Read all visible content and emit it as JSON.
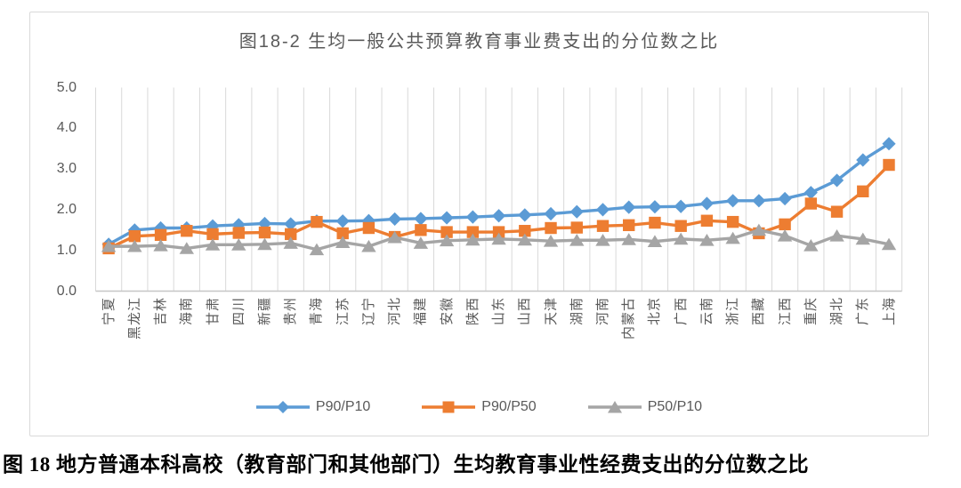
{
  "figure": {
    "chart_title": "图18-2 生均一般公共预算教育事业费支出的分位数之比",
    "caption": "图 18 地方普通本科高校（教育部门和其他部门）生均教育事业性经费支出的分位数之比"
  },
  "colors": {
    "series_blue": "#5B9BD5",
    "series_orange": "#ED7D31",
    "series_gray": "#A5A5A5",
    "gridline": "#D9D9D9",
    "axis_line": "#C6C6C6",
    "axis_text": "#595959",
    "chart_border": "#D9D9D9",
    "caption_text": "#000000"
  },
  "chart_data": {
    "type": "line",
    "title": "图18-2 生均一般公共预算教育事业费支出的分位数之比",
    "categories": [
      "宁夏",
      "黑龙江",
      "吉林",
      "海南",
      "甘肃",
      "四川",
      "新疆",
      "贵州",
      "青海",
      "江苏",
      "辽宁",
      "河北",
      "福建",
      "安徽",
      "陕西",
      "山东",
      "山西",
      "天津",
      "湖南",
      "河南",
      "内蒙古",
      "北京",
      "广西",
      "云南",
      "浙江",
      "西藏",
      "江西",
      "重庆",
      "湖北",
      "广东",
      "上海"
    ],
    "series": [
      {
        "name": "P90/P10",
        "marker": "diamond",
        "color": "#5B9BD5",
        "values": [
          1.15,
          1.5,
          1.55,
          1.55,
          1.6,
          1.63,
          1.66,
          1.65,
          1.72,
          1.72,
          1.73,
          1.77,
          1.78,
          1.8,
          1.82,
          1.85,
          1.87,
          1.9,
          1.95,
          2.0,
          2.06,
          2.07,
          2.08,
          2.15,
          2.22,
          2.22,
          2.27,
          2.42,
          2.72,
          3.22,
          3.62
        ]
      },
      {
        "name": "P90/P50",
        "marker": "square",
        "color": "#ED7D31",
        "values": [
          1.05,
          1.35,
          1.38,
          1.48,
          1.4,
          1.43,
          1.44,
          1.4,
          1.7,
          1.42,
          1.55,
          1.33,
          1.5,
          1.45,
          1.45,
          1.45,
          1.48,
          1.55,
          1.56,
          1.6,
          1.62,
          1.68,
          1.6,
          1.73,
          1.7,
          1.42,
          1.64,
          2.15,
          1.95,
          2.45,
          3.1
        ]
      },
      {
        "name": "P50/P10",
        "marker": "triangle",
        "color": "#A5A5A5",
        "values": [
          1.1,
          1.1,
          1.12,
          1.05,
          1.14,
          1.14,
          1.15,
          1.18,
          1.02,
          1.2,
          1.1,
          1.32,
          1.18,
          1.24,
          1.26,
          1.28,
          1.26,
          1.23,
          1.25,
          1.25,
          1.27,
          1.22,
          1.28,
          1.25,
          1.3,
          1.5,
          1.36,
          1.12,
          1.36,
          1.28,
          1.15
        ]
      }
    ],
    "xlabel": "",
    "ylabel": "",
    "ylim": [
      0.0,
      5.0
    ],
    "ytick_labels": [
      "0.0",
      "1.0",
      "2.0",
      "3.0",
      "4.0",
      "5.0"
    ],
    "ytick_values": [
      0,
      1,
      2,
      3,
      4,
      5
    ],
    "grid": "vertical-only",
    "legend_position": "bottom"
  }
}
